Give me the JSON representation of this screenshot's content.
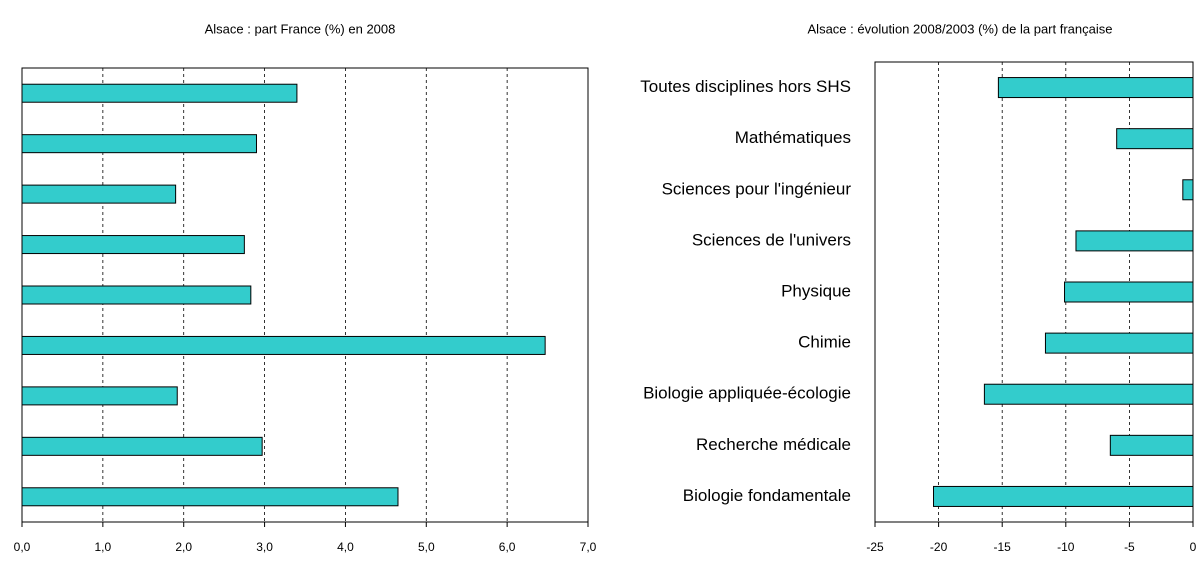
{
  "chart_data": [
    {
      "type": "bar",
      "orientation": "horizontal",
      "title": "Alsace : part France (%) en 2008",
      "categories": [
        null,
        null,
        null,
        null,
        null,
        null,
        null,
        null,
        null
      ],
      "values": [
        3.4,
        2.9,
        1.9,
        2.75,
        2.83,
        6.47,
        1.92,
        2.97,
        4.65
      ],
      "color": "#33cccc",
      "xlim": [
        0,
        7
      ],
      "xticks": [
        {
          "value": 0,
          "label": "0,0"
        },
        {
          "value": 1,
          "label": "1,0"
        },
        {
          "value": 2,
          "label": "2,0"
        },
        {
          "value": 3,
          "label": "3,0"
        },
        {
          "value": 4,
          "label": "4,0"
        },
        {
          "value": 5,
          "label": "5,0"
        },
        {
          "value": 6,
          "label": "6,0"
        },
        {
          "value": 7,
          "label": "7,0"
        }
      ],
      "grid": true
    },
    {
      "type": "bar",
      "orientation": "horizontal",
      "title": "Alsace : évolution 2008/2003 (%) de la part française",
      "categories": [
        "Toutes disciplines hors SHS",
        "Mathématiques",
        "Sciences pour l'ingénieur",
        "Sciences de l'univers",
        "Physique",
        "Chimie",
        "Biologie appliquée-écologie",
        "Recherche médicale",
        "Biologie fondamentale"
      ],
      "values": [
        -15.3,
        -6.0,
        -0.8,
        -9.2,
        -10.1,
        -11.6,
        -16.4,
        -6.5,
        -20.4
      ],
      "color": "#33cccc",
      "xlim": [
        -25,
        0
      ],
      "xticks": [
        -25,
        -20,
        -15,
        -10,
        -5,
        0
      ],
      "grid": true
    }
  ]
}
